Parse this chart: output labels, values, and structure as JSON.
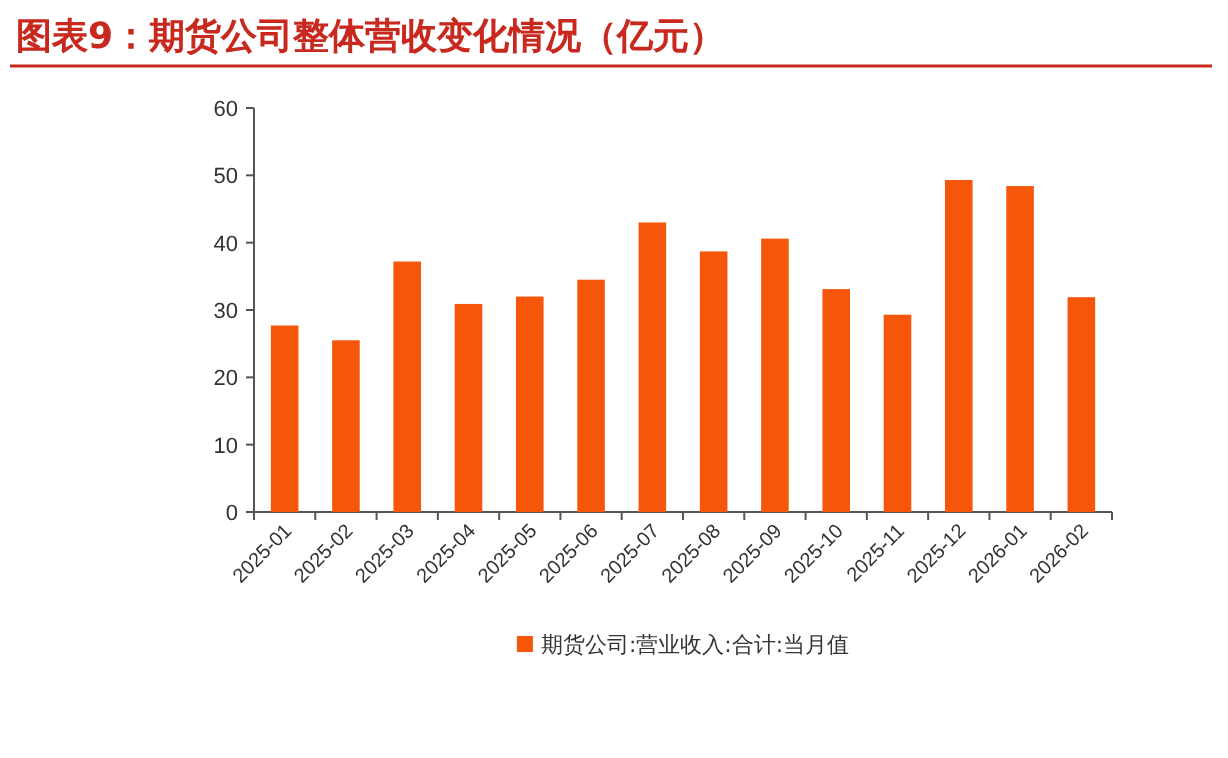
{
  "chart_data": {
    "type": "bar",
    "title": "图表9：期货公司整体营收变化情况（亿元）",
    "categories": [
      "2025-01",
      "2025-02",
      "2025-03",
      "2025-04",
      "2025-05",
      "2025-06",
      "2025-07",
      "2025-08",
      "2025-09",
      "2025-10",
      "2025-11",
      "2025-12",
      "2026-01",
      "2026-02"
    ],
    "series": [
      {
        "name": "期货公司:营业收入:合计:当月值",
        "color": "#f5560a",
        "values": [
          27.7,
          25.5,
          37.2,
          30.9,
          32.0,
          34.5,
          43.0,
          38.7,
          40.6,
          33.1,
          29.3,
          49.3,
          48.4,
          31.9
        ]
      }
    ],
    "ylim": [
      0,
      60
    ],
    "yticks": [
      0,
      10,
      20,
      30,
      40,
      50,
      60
    ],
    "legend": "bottom",
    "grid": false
  }
}
